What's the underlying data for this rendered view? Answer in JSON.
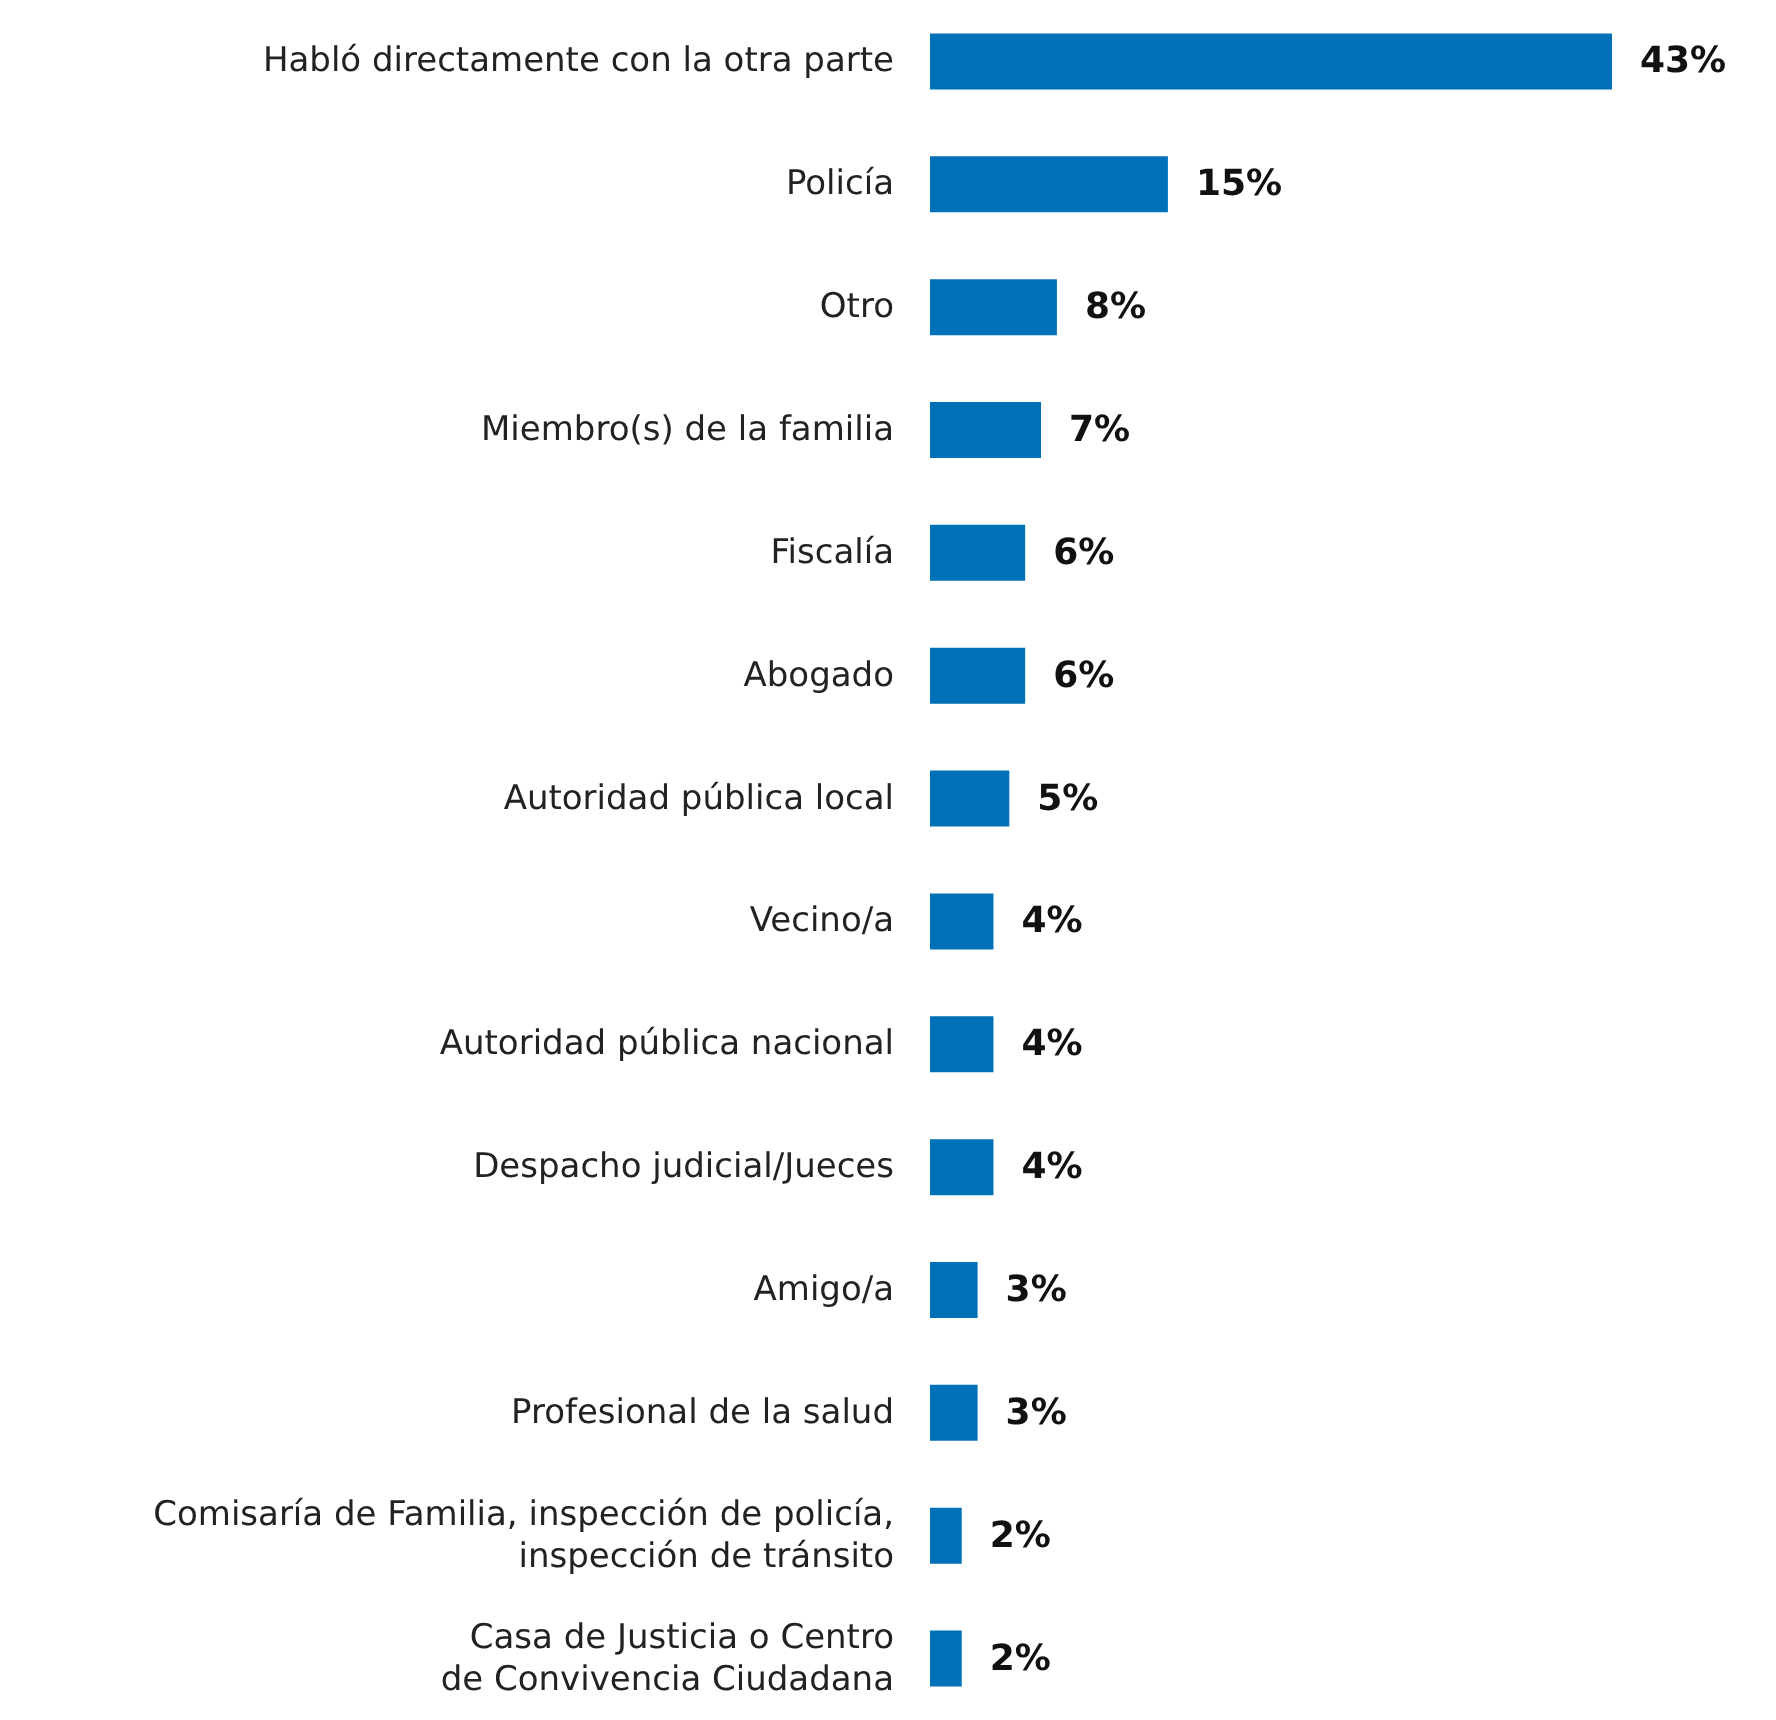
{
  "chart_data": {
    "type": "bar",
    "orientation": "horizontal",
    "categories": [
      "Habló directamente con la otra parte",
      "Policía",
      "Otro",
      "Miembro(s) de la familia",
      "Fiscalía",
      "Abogado",
      "Autoridad pública local",
      "Vecino/a",
      "Autoridad pública nacional",
      "Despacho judicial/Jueces",
      "Amigo/a",
      "Profesional de la salud",
      "Comisaría de Familia, inspección de policía,\ninspección de tránsito",
      "Casa de Justicia o Centro\nde Convivencia Ciudadana"
    ],
    "values": [
      43,
      15,
      8,
      7,
      6,
      6,
      5,
      4,
      4,
      4,
      3,
      3,
      2,
      2
    ],
    "value_labels": [
      "43%",
      "15%",
      "8%",
      "7%",
      "6%",
      "6%",
      "5%",
      "4%",
      "4%",
      "4%",
      "3%",
      "3%",
      "2%",
      "2%"
    ],
    "color": "#0070b8"
  }
}
